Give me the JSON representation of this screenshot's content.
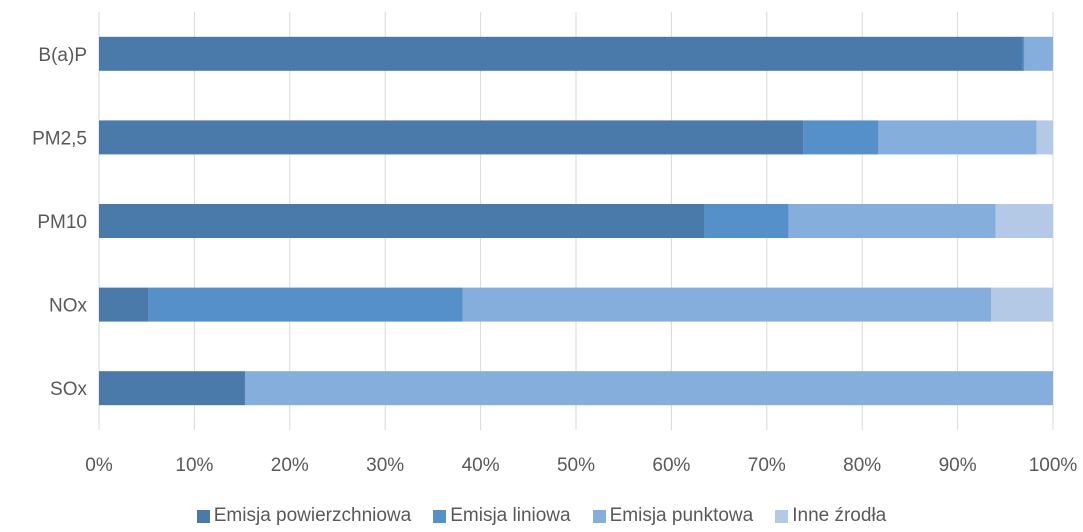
{
  "chart_data": {
    "type": "bar",
    "orientation": "horizontal",
    "stacked": "percent",
    "categories": [
      "B(a)P",
      "PM2,5",
      "PM10",
      "NOx",
      "SOx"
    ],
    "series": [
      {
        "name": "Emisja powierzchniowa",
        "color": "#4a7aaa",
        "values": [
          96.8,
          73.8,
          63.5,
          5.2,
          15.3
        ]
      },
      {
        "name": "Emisja liniowa",
        "color": "#5591c8",
        "values": [
          0.2,
          7.9,
          8.8,
          32.9,
          0.0
        ]
      },
      {
        "name": "Emisja punktowa",
        "color": "#85aedc",
        "values": [
          3.0,
          16.6,
          21.7,
          55.4,
          84.7
        ]
      },
      {
        "name": "Inne źrodła",
        "color": "#b4c9e6",
        "values": [
          0.0,
          1.7,
          6.0,
          6.5,
          0.0
        ]
      }
    ],
    "x_ticks": [
      "0%",
      "10%",
      "20%",
      "30%",
      "40%",
      "50%",
      "60%",
      "70%",
      "80%",
      "90%",
      "100%"
    ],
    "xlim": [
      0,
      100
    ],
    "grid": true,
    "legend_position": "bottom"
  }
}
